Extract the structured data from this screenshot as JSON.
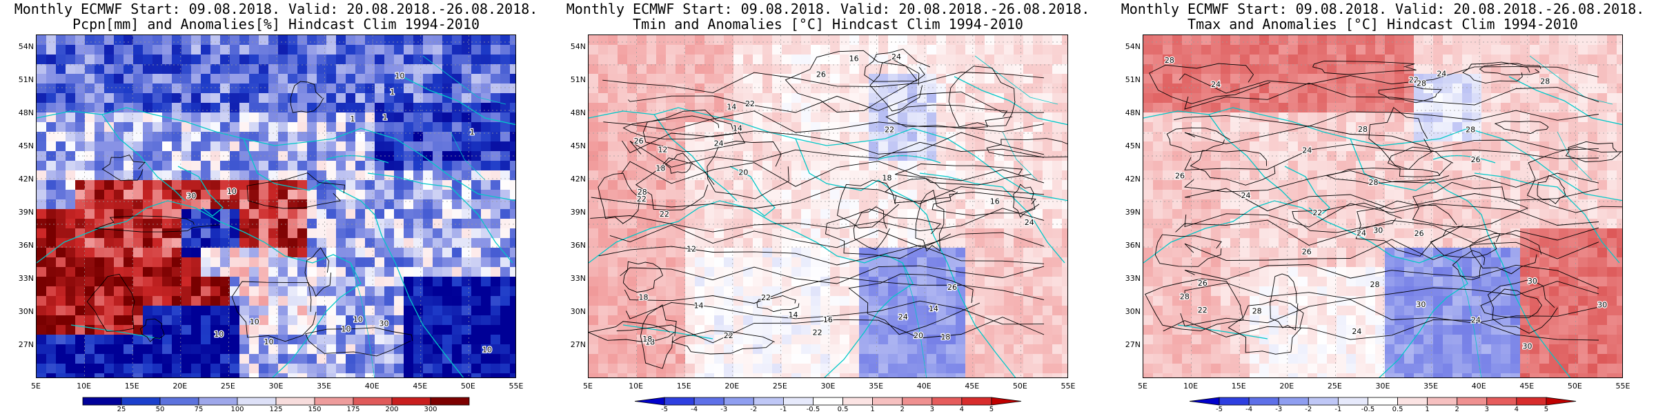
{
  "panels": [
    {
      "title_line1": "Monthly ECMWF Start: 09.08.2018. Valid: 20.08.2018.-26.08.2018.",
      "title_line2": "Pcpn[mm] and Anomalies[%] Hindcast Clim 1994-2010",
      "scheme": "precip",
      "colorbar": {
        "labels": [
          "25",
          "50",
          "75",
          "100",
          "125",
          "150",
          "175",
          "200",
          "300"
        ],
        "colors": [
          "#000099",
          "#1b3fcc",
          "#5c72dd",
          "#9ea7ea",
          "#dde0f7",
          "#f7dcdc",
          "#ee9c9c",
          "#e05a5a",
          "#c91e1e",
          "#7d0000"
        ],
        "arrows": false
      },
      "contour_labels": [
        "10",
        "10",
        "10",
        "30",
        "30",
        "10",
        "10",
        "1",
        "10",
        "1",
        "1",
        "10",
        "1",
        "10"
      ]
    },
    {
      "title_line1": "Monthly ECMWF Start: 09.08.2018. Valid: 20.08.2018.-26.08.2018.",
      "title_line2": "Tmin and Anomalies [°C] Hindcast Clim 1994-2010",
      "scheme": "tmin",
      "colorbar": {
        "labels": [
          "-5",
          "-4",
          "-3",
          "-2",
          "-1",
          "-0.5",
          "0.5",
          "1",
          "2",
          "3",
          "4",
          "5"
        ],
        "colors": [
          "#0000cc",
          "#2e3fe0",
          "#5e70e8",
          "#8f9ef0",
          "#bfc7f6",
          "#e6e9fb",
          "#ffffff",
          "#fbe3e3",
          "#f6c0c0",
          "#ef9090",
          "#e65c5c",
          "#d82c2c",
          "#c00000"
        ],
        "arrows": true
      },
      "contour_labels": [
        "14",
        "14",
        "14",
        "18",
        "12",
        "12",
        "14",
        "16",
        "18",
        "16",
        "14",
        "16",
        "24",
        "22",
        "20",
        "22",
        "26",
        "22",
        "22",
        "18",
        "18",
        "26",
        "24",
        "26",
        "18",
        "22",
        "24",
        "20",
        "24",
        "28",
        "22",
        "22",
        "18"
      ]
    },
    {
      "title_line1": "Monthly ECMWF Start: 09.08.2018. Valid: 20.08.2018.-26.08.2018.",
      "title_line2": "Tmax and Anomalies [°C] Hindcast Clim 1994-2010",
      "scheme": "tmax",
      "colorbar": {
        "labels": [
          "-5",
          "-4",
          "-3",
          "-2",
          "-1",
          "-0.5",
          "0.5",
          "1",
          "2",
          "3",
          "4",
          "5"
        ],
        "colors": [
          "#0000cc",
          "#2e3fe0",
          "#5e70e8",
          "#8f9ef0",
          "#bfc7f6",
          "#e6e9fb",
          "#ffffff",
          "#fbe3e3",
          "#f6c0c0",
          "#ef9090",
          "#e65c5c",
          "#d82c2c",
          "#c00000"
        ],
        "arrows": true
      },
      "contour_labels": [
        "24",
        "24",
        "24",
        "26",
        "24",
        "26",
        "28",
        "22",
        "22",
        "24",
        "30",
        "28",
        "24",
        "22",
        "28",
        "30",
        "26",
        "28",
        "24",
        "26",
        "28",
        "30",
        "26",
        "28",
        "28",
        "30",
        "30",
        "28",
        "28"
      ]
    }
  ],
  "lat_labels": [
    "54N",
    "51N",
    "48N",
    "45N",
    "42N",
    "39N",
    "36N",
    "33N",
    "30N",
    "27N"
  ],
  "lon_labels": [
    "5E",
    "10E",
    "15E",
    "20E",
    "25E",
    "30E",
    "35E",
    "40E",
    "45E",
    "50E",
    "55E"
  ],
  "colors": {
    "coastline": "#00c8c8",
    "contour": "#000000",
    "graticule": "#9a9a9a"
  }
}
